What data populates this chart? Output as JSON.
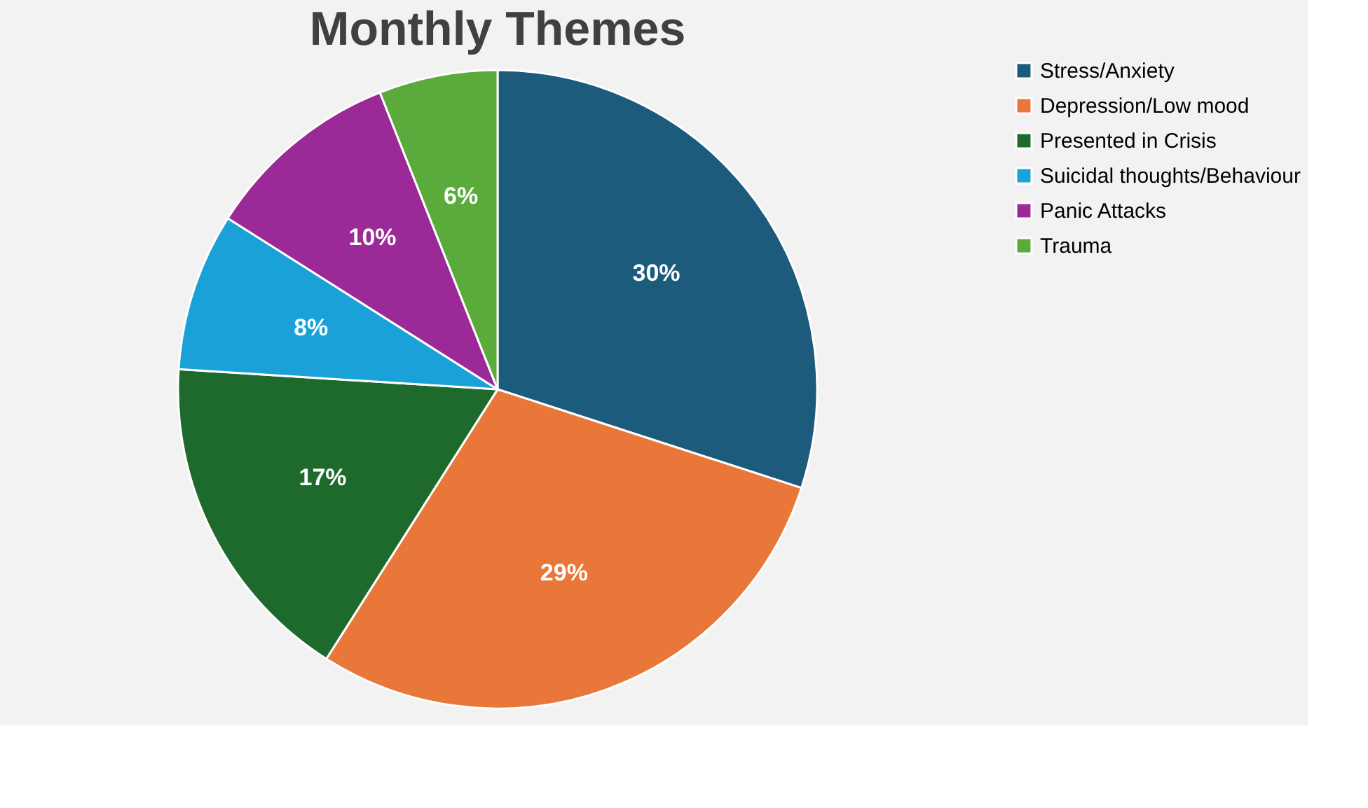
{
  "chart_data": {
    "type": "pie",
    "title": "Monthly Themes",
    "categories": [
      "Stress/Anxiety",
      "Depression/Low mood",
      "Presented in Crisis",
      "Suicidal thoughts/Behaviour",
      "Panic Attacks",
      "Trauma"
    ],
    "values": [
      30,
      29,
      17,
      8,
      10,
      6
    ],
    "colors": [
      "#1d5b7d",
      "#e9773a",
      "#1e6a2d",
      "#1aa2d8",
      "#9b2a98",
      "#5aab3b"
    ],
    "value_labels": [
      "30%",
      "29%",
      "17%",
      "8%",
      "10%",
      "6%"
    ],
    "legend": "right"
  }
}
